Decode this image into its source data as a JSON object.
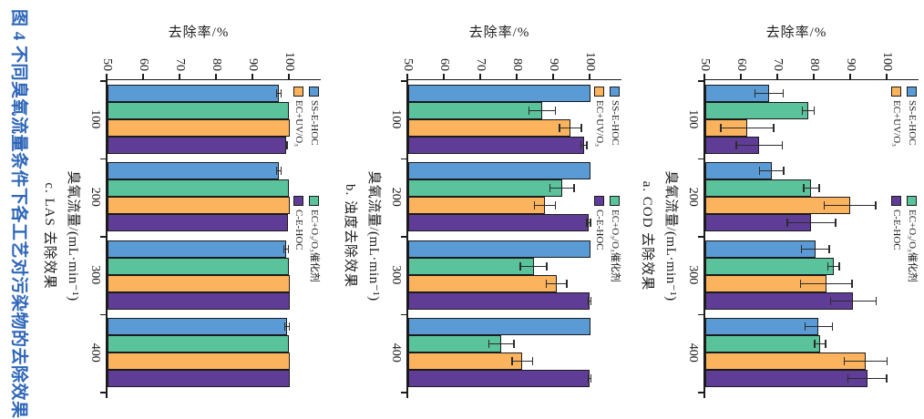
{
  "caption": "图 4  不同臭氧流量条件下各工艺对污染物的去除效果",
  "axis": {
    "value_label": "去除率/%",
    "value_min": 50,
    "value_max": 100,
    "value_step": 10,
    "category_label": "臭氧流量/(mL·min⁻¹)"
  },
  "legend": [
    {
      "label": "SS-E-HOC",
      "color": "#5b9bd5"
    },
    {
      "label": "EC+O₃/O₃催化剂",
      "color": "#5bc39b"
    },
    {
      "label": "EC+UV/O₃",
      "color": "#fbb35e"
    },
    {
      "label": "C-E-HOC",
      "color": "#5f3d96"
    }
  ],
  "chart_data": [
    {
      "type": "bar",
      "title": "a. COD 去除效果",
      "xlabel": "臭氧流量/(mL·min⁻¹)",
      "ylabel": "去除率/%",
      "ylim": [
        50,
        100
      ],
      "grid": false,
      "legend_position": "above-plot",
      "categories": [
        "100",
        "200",
        "300",
        "400"
      ],
      "series": [
        {
          "name": "SS-E-HOC",
          "color": "#5b9bd5",
          "values": [
            67.5,
            68.2,
            80.2,
            81.1
          ],
          "errors": [
            4.0,
            3.5,
            4.0,
            3.9
          ]
        },
        {
          "name": "EC+O₃/O₃催化剂",
          "color": "#5bc39b",
          "values": [
            78.3,
            79.1,
            85.2,
            81.5
          ],
          "errors": [
            1.8,
            2.3,
            1.7,
            1.7
          ]
        },
        {
          "name": "EC+UV/O₃",
          "color": "#fbb35e",
          "values": [
            61.5,
            89.7,
            83.2,
            94.0
          ],
          "errors": [
            7.4,
            7.2,
            7.2,
            6.0
          ]
        },
        {
          "name": "C-E-HOC",
          "color": "#5f3d96",
          "values": [
            64.8,
            79.1,
            90.6,
            94.4
          ],
          "errors": [
            6.5,
            6.8,
            6.4,
            5.5
          ]
        }
      ]
    },
    {
      "type": "bar",
      "title": "b. 浊度去除效果",
      "xlabel": "臭氧流量/(mL·min⁻¹)",
      "ylabel": "去除率/%",
      "ylim": [
        50,
        100
      ],
      "grid": false,
      "legend_position": "above-plot",
      "categories": [
        "100",
        "200",
        "300",
        "400"
      ],
      "series": [
        {
          "name": "SS-E-HOC",
          "color": "#5b9bd5",
          "values": [
            100,
            100,
            100,
            100
          ],
          "errors": [
            0,
            0,
            0,
            0
          ]
        },
        {
          "name": "EC+O₃/O₃催化剂",
          "color": "#5bc39b",
          "values": [
            86.8,
            92.2,
            84.4,
            75.6
          ],
          "errors": [
            3.8,
            3.5,
            3.8,
            3.6
          ]
        },
        {
          "name": "EC+UV/O₃",
          "color": "#fbb35e",
          "values": [
            94.5,
            87.5,
            90.7,
            81.3
          ],
          "errors": [
            3.2,
            3.0,
            3.0,
            3.0
          ]
        },
        {
          "name": "C-E-HOC",
          "color": "#5f3d96",
          "values": [
            98.2,
            99.5,
            99.8,
            99.8
          ],
          "errors": [
            1.0,
            0.7,
            0.5,
            0.5
          ]
        }
      ]
    },
    {
      "type": "bar",
      "title": "c. LAS 去除效果",
      "xlabel": "臭氧流量/(mL·min⁻¹)",
      "ylabel": "去除率/%",
      "ylim": [
        50,
        100
      ],
      "grid": false,
      "legend_position": "above-plot",
      "categories": [
        "100",
        "200",
        "300",
        "400"
      ],
      "series": [
        {
          "name": "SS-E-HOC",
          "color": "#5b9bd5",
          "values": [
            97.0,
            97.0,
            99.0,
            99.2
          ],
          "errors": [
            0.8,
            0.8,
            0.8,
            0.8
          ]
        },
        {
          "name": "EC+O₃/O₃催化剂",
          "color": "#5bc39b",
          "values": [
            99.7,
            99.7,
            99.8,
            99.8
          ],
          "errors": [
            0,
            0,
            0,
            0
          ]
        },
        {
          "name": "EC+UV/O₃",
          "color": "#fbb35e",
          "values": [
            100,
            100,
            100,
            100
          ],
          "errors": [
            0,
            0,
            0,
            0
          ]
        },
        {
          "name": "C-E-HOC",
          "color": "#5f3d96",
          "values": [
            99.1,
            99.5,
            100,
            100
          ],
          "errors": [
            0.3,
            0,
            0,
            0
          ]
        }
      ]
    }
  ]
}
